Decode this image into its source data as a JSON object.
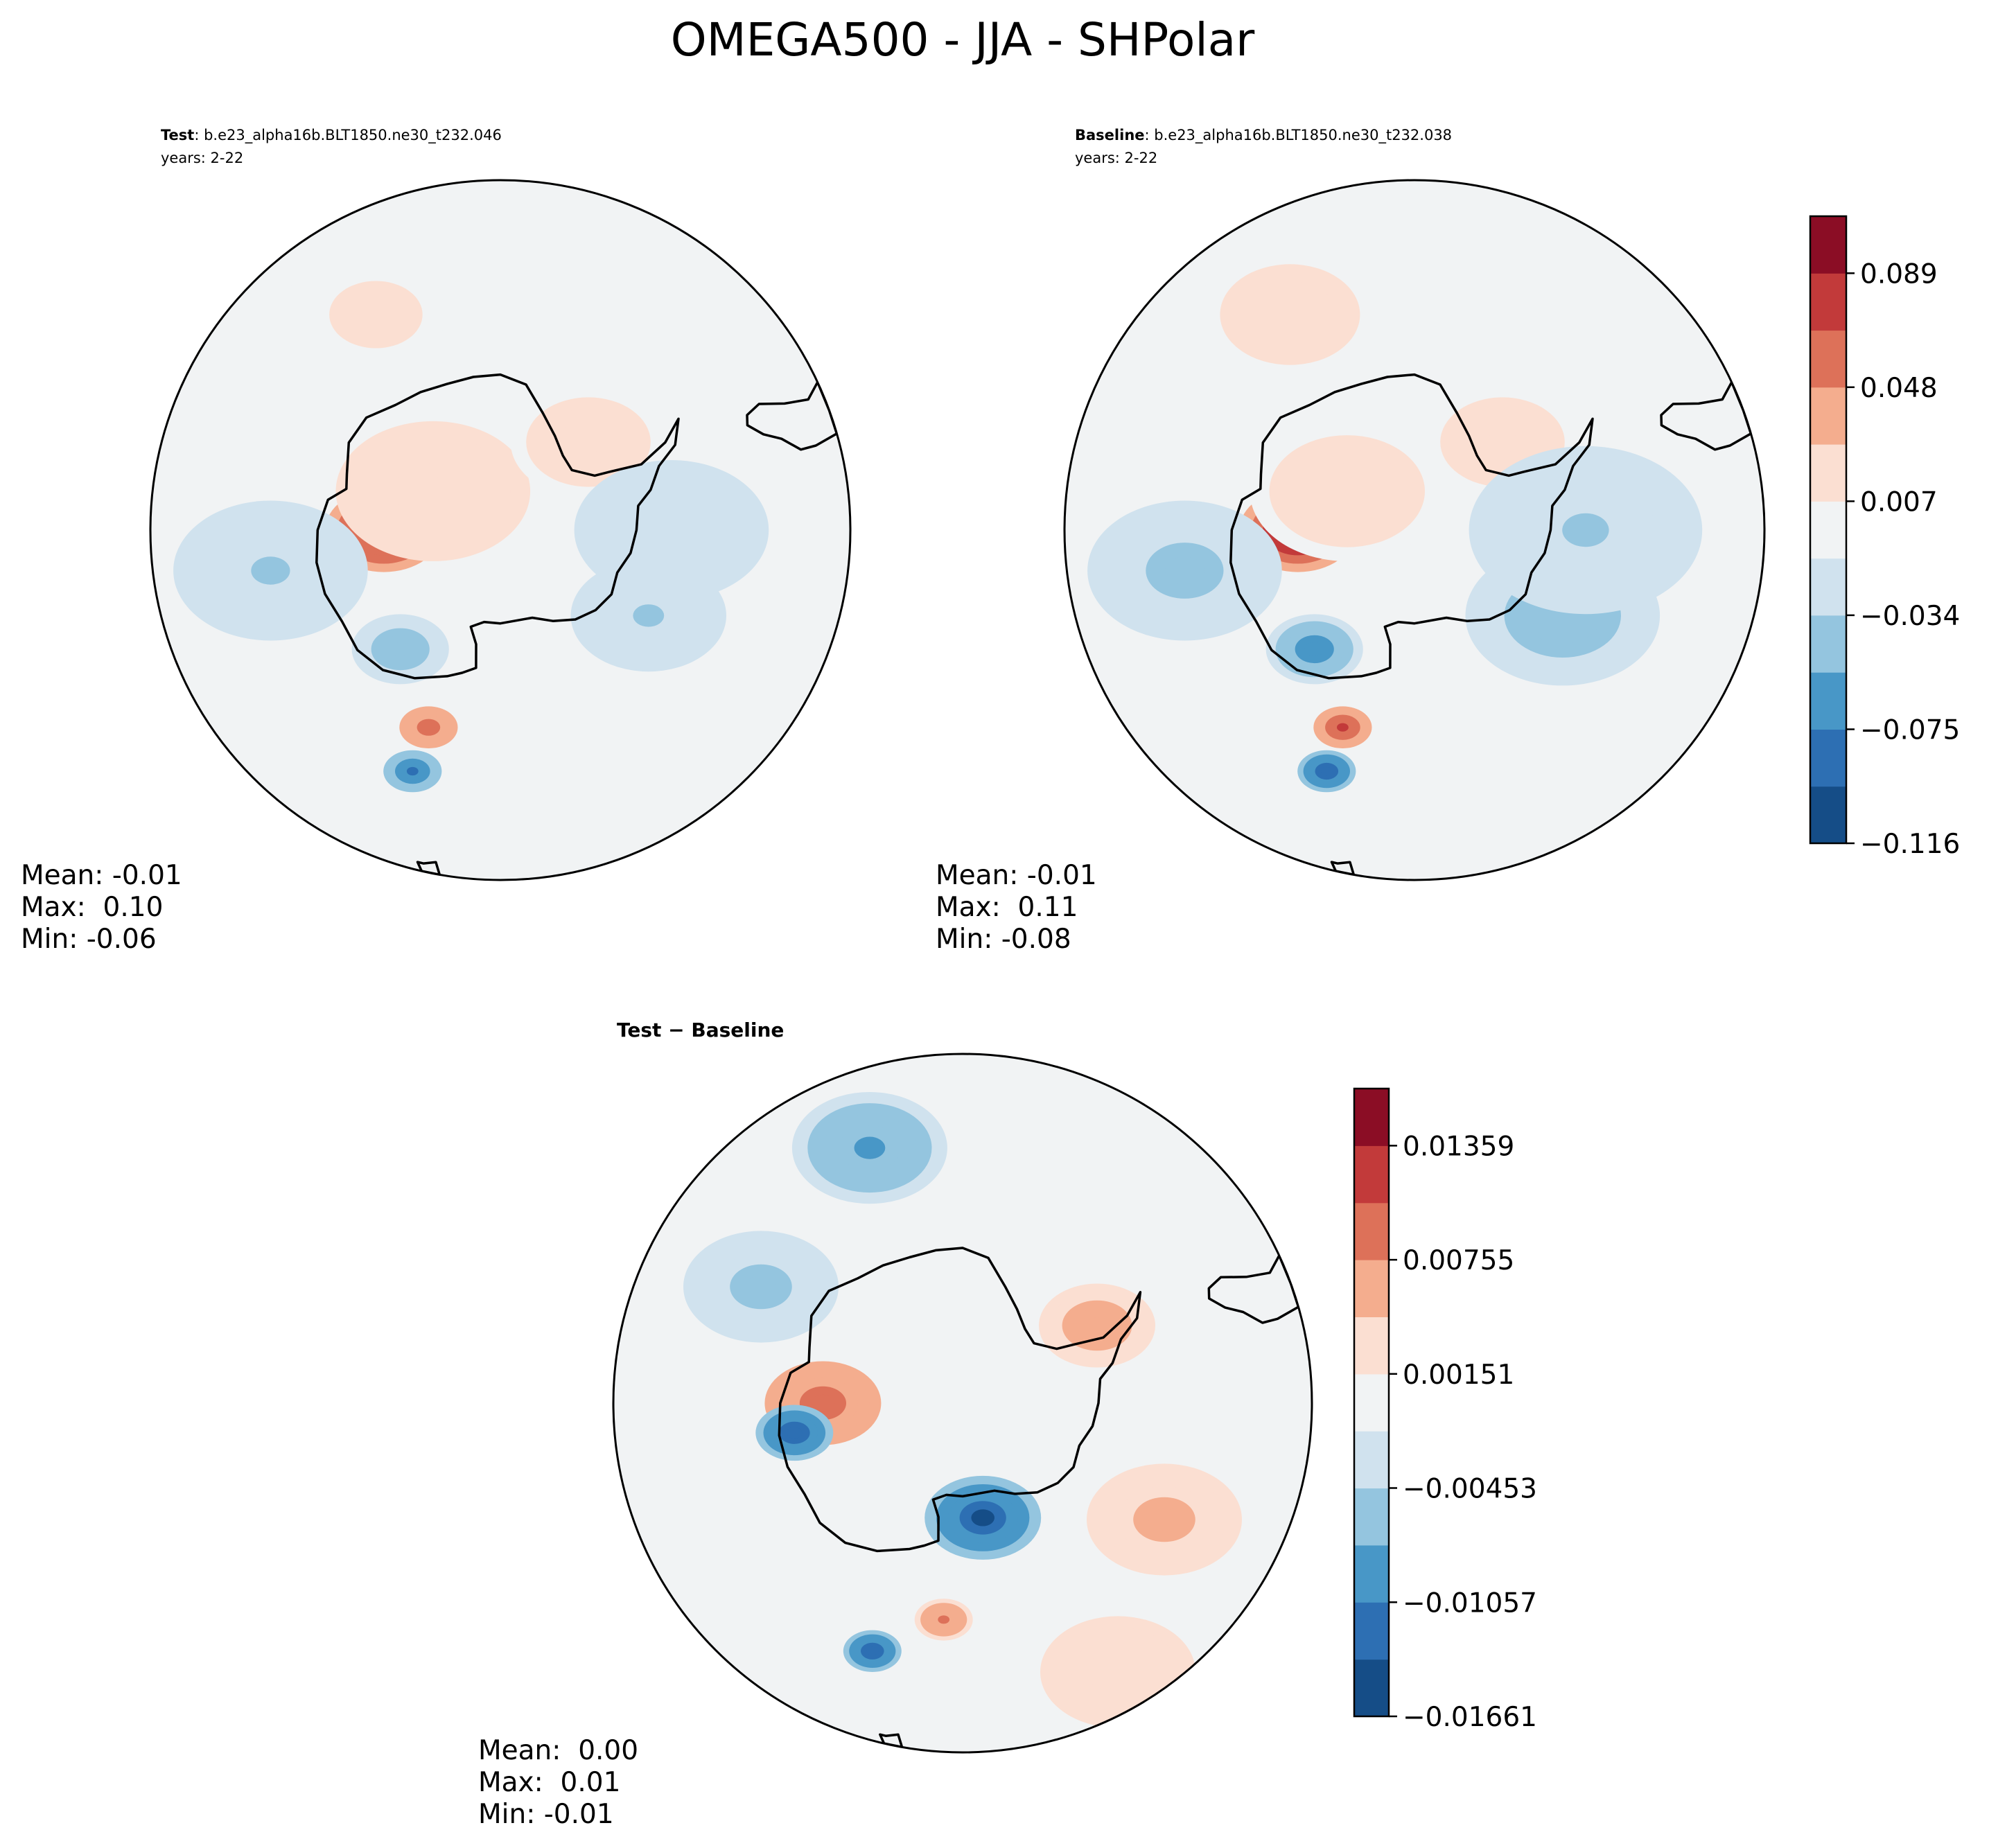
{
  "figure": {
    "title": "OMEGA500 - JJA - SHPolar"
  },
  "palette": {
    "red_blue_10": [
      "#154d87",
      "#2d6fb3",
      "#4897c7",
      "#94c5df",
      "#d0e2ee",
      "#f1f3f4",
      "#fbdfd2",
      "#f4ad8e",
      "#dd7159",
      "#c23a3a",
      "#8b0d25"
    ],
    "coast": "#000000",
    "frame": "#000000"
  },
  "panels": [
    {
      "key": "test",
      "label_bold": "Test",
      "label_rest": ": b.e23_alpha16b.BLT1850.ne30_t232.046",
      "years": "years: 2-22",
      "stats": [
        "Mean: -0.01",
        "Max:  0.10",
        "Min: -0.06"
      ]
    },
    {
      "key": "baseline",
      "label_bold": "Baseline",
      "label_rest": ": b.e23_alpha16b.BLT1850.ne30_t232.038",
      "years": "years: 2-22",
      "stats": [
        "Mean: -0.01",
        "Max:  0.11",
        "Min: -0.08"
      ]
    },
    {
      "key": "diff",
      "label_bold": "Test − Baseline",
      "label_rest": "",
      "years": "",
      "stats": [
        "Mean:  0.00",
        "Max:  0.01",
        "Min: -0.01"
      ]
    }
  ],
  "chart_data": [
    {
      "type": "heatmap",
      "name": "Test",
      "projection": "south-polar-stereographic",
      "contour_levels_labeled": [
        -0.116,
        -0.075,
        -0.034,
        0.007,
        0.048,
        0.089
      ],
      "fields": [
        {
          "lon": 90,
          "lat": -75,
          "value": 0.11,
          "spread": 6
        },
        {
          "lon": 60,
          "lat": -80,
          "value": 0.04,
          "spread": 10
        },
        {
          "lon": -45,
          "lat": -74,
          "value": 0.03,
          "spread": 8
        },
        {
          "lon": 140,
          "lat": -70,
          "value": -0.045,
          "spread": 5
        },
        {
          "lon": -120,
          "lat": -68,
          "value": -0.03,
          "spread": 8
        },
        {
          "lon": -90,
          "lat": -68,
          "value": -0.02,
          "spread": 10
        },
        {
          "lon": 160,
          "lat": -57,
          "value": -0.08,
          "spread": 3
        },
        {
          "lon": 160,
          "lat": -63,
          "value": 0.08,
          "spread": 3
        },
        {
          "lon": 30,
          "lat": -58,
          "value": 0.02,
          "spread": 12
        },
        {
          "lon": 100,
          "lat": -60,
          "value": -0.03,
          "spread": 10
        }
      ]
    },
    {
      "type": "heatmap",
      "name": "Baseline",
      "projection": "south-polar-stereographic",
      "contour_levels_labeled": [
        -0.116,
        -0.075,
        -0.034,
        0.007,
        0.048,
        0.089
      ],
      "fields": [
        {
          "lon": 90,
          "lat": -75,
          "value": 0.12,
          "spread": 6
        },
        {
          "lon": 60,
          "lat": -80,
          "value": 0.03,
          "spread": 10
        },
        {
          "lon": -45,
          "lat": -74,
          "value": 0.03,
          "spread": 8
        },
        {
          "lon": 140,
          "lat": -70,
          "value": -0.06,
          "spread": 5
        },
        {
          "lon": -120,
          "lat": -68,
          "value": -0.04,
          "spread": 10
        },
        {
          "lon": -90,
          "lat": -68,
          "value": -0.03,
          "spread": 12
        },
        {
          "lon": 160,
          "lat": -57,
          "value": -0.09,
          "spread": 3
        },
        {
          "lon": 160,
          "lat": -63,
          "value": 0.09,
          "spread": 3
        },
        {
          "lon": 30,
          "lat": -58,
          "value": 0.025,
          "spread": 12
        },
        {
          "lon": 100,
          "lat": -60,
          "value": -0.035,
          "spread": 10
        }
      ]
    },
    {
      "type": "heatmap",
      "name": "Test − Baseline",
      "projection": "south-polar-stereographic",
      "contour_levels_labeled": [
        -0.01661,
        -0.01057,
        -0.00453,
        0.00151,
        0.00755,
        0.01359
      ],
      "fields": [
        {
          "lon": -170,
          "lat": -75,
          "value": -0.014,
          "spread": 6
        },
        {
          "lon": 90,
          "lat": -72,
          "value": 0.012,
          "spread": 6
        },
        {
          "lon": 100,
          "lat": -68,
          "value": -0.012,
          "spread": 4
        },
        {
          "lon": -60,
          "lat": -70,
          "value": 0.009,
          "spread": 6
        },
        {
          "lon": -120,
          "lat": -60,
          "value": 0.008,
          "spread": 8
        },
        {
          "lon": 20,
          "lat": -55,
          "value": -0.007,
          "spread": 8
        },
        {
          "lon": 160,
          "lat": -56,
          "value": -0.012,
          "spread": 3
        },
        {
          "lon": 175,
          "lat": -62,
          "value": 0.01,
          "spread": 3
        },
        {
          "lon": -150,
          "lat": -50,
          "value": 0.006,
          "spread": 8
        },
        {
          "lon": 60,
          "lat": -60,
          "value": -0.005,
          "spread": 8
        }
      ]
    }
  ],
  "colorbars": [
    {
      "key": "top",
      "ticks": [
        "0.089",
        "0.048",
        "0.007",
        "−0.034",
        "−0.075",
        "−0.116"
      ]
    },
    {
      "key": "diff",
      "ticks": [
        "0.01359",
        "0.00755",
        "0.00151",
        "−0.00453",
        "−0.01057",
        "−0.01661"
      ]
    }
  ]
}
